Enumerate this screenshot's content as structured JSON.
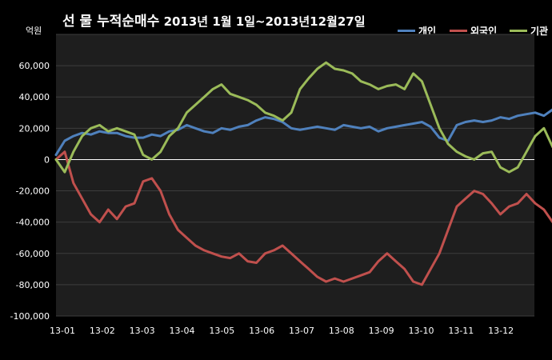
{
  "chart_data": {
    "type": "line",
    "title_main": "선 물 누적순매수",
    "title_range": "2013년 1월 1일~2013년12월27일",
    "unit_label": "억원",
    "categories": [
      "13-01",
      "13-02",
      "13-03",
      "13-04",
      "13-05",
      "13-06",
      "13-07",
      "13-08",
      "13-09",
      "13-10",
      "13-11",
      "13-12"
    ],
    "y_ticks": [
      "60,000",
      "40,000",
      "20,000",
      "0",
      "-20,000",
      "-40,000",
      "-60,000",
      "-80,000",
      "-100,000"
    ],
    "ylim": [
      -100000,
      80000
    ],
    "grid": true,
    "legend_position": "top-right",
    "series": [
      {
        "name": "개인",
        "color": "#4f81bd",
        "x": [
          0,
          0.2,
          0.4,
          0.6,
          0.8,
          1.0,
          1.2,
          1.4,
          1.6,
          1.8,
          2.0,
          2.2,
          2.4,
          2.6,
          2.8,
          3.0,
          3.2,
          3.4,
          3.6,
          3.8,
          4.0,
          4.2,
          4.4,
          4.6,
          4.8,
          5.0,
          5.2,
          5.4,
          5.6,
          5.8,
          6.0,
          6.2,
          6.4,
          6.6,
          6.8,
          7.0,
          7.2,
          7.4,
          7.6,
          7.8,
          8.0,
          8.2,
          8.4,
          8.6,
          8.8,
          9.0,
          9.2,
          9.4,
          9.6,
          9.8,
          10.0,
          10.2,
          10.4,
          10.6,
          10.8,
          11.0,
          11.2,
          11.4,
          11.6,
          11.8
        ],
        "values": [
          3000,
          12000,
          15000,
          17000,
          16000,
          18000,
          17000,
          17000,
          15000,
          14000,
          14000,
          16000,
          15000,
          18000,
          19000,
          22000,
          20000,
          18000,
          17000,
          20000,
          19000,
          21000,
          22000,
          25000,
          27000,
          26000,
          24000,
          20000,
          19000,
          20000,
          21000,
          20000,
          19000,
          22000,
          21000,
          20000,
          21000,
          18000,
          20000,
          21000,
          22000,
          23000,
          24000,
          21000,
          14000,
          12000,
          22000,
          24000,
          25000,
          24000,
          25000,
          27000,
          26000,
          28000,
          29000,
          30000,
          28000,
          32000,
          28000,
          18000
        ]
      },
      {
        "name": "외국인",
        "color": "#c0504d",
        "x": [
          0,
          0.2,
          0.4,
          0.6,
          0.8,
          1.0,
          1.2,
          1.4,
          1.6,
          1.8,
          2.0,
          2.2,
          2.4,
          2.6,
          2.8,
          3.0,
          3.2,
          3.4,
          3.6,
          3.8,
          4.0,
          4.2,
          4.4,
          4.6,
          4.8,
          5.0,
          5.2,
          5.4,
          5.6,
          5.8,
          6.0,
          6.2,
          6.4,
          6.6,
          6.8,
          7.0,
          7.2,
          7.4,
          7.6,
          7.8,
          8.0,
          8.2,
          8.4,
          8.6,
          8.8,
          9.0,
          9.2,
          9.4,
          9.6,
          9.8,
          10.0,
          10.2,
          10.4,
          10.6,
          10.8,
          11.0,
          11.2,
          11.4,
          11.6,
          11.8
        ],
        "values": [
          0,
          5000,
          -15000,
          -25000,
          -35000,
          -40000,
          -32000,
          -38000,
          -30000,
          -28000,
          -14000,
          -12000,
          -20000,
          -35000,
          -45000,
          -50000,
          -55000,
          -58000,
          -60000,
          -62000,
          -63000,
          -60000,
          -65000,
          -66000,
          -60000,
          -58000,
          -55000,
          -60000,
          -65000,
          -70000,
          -75000,
          -78000,
          -76000,
          -78000,
          -76000,
          -74000,
          -72000,
          -65000,
          -60000,
          -65000,
          -70000,
          -78000,
          -80000,
          -70000,
          -60000,
          -45000,
          -30000,
          -25000,
          -20000,
          -22000,
          -28000,
          -35000,
          -30000,
          -28000,
          -22000,
          -28000,
          -32000,
          -40000,
          -45000,
          -20000
        ]
      },
      {
        "name": "기관",
        "color": "#9bbb59",
        "x": [
          0,
          0.2,
          0.4,
          0.6,
          0.8,
          1.0,
          1.2,
          1.4,
          1.6,
          1.8,
          2.0,
          2.2,
          2.4,
          2.6,
          2.8,
          3.0,
          3.2,
          3.4,
          3.6,
          3.8,
          4.0,
          4.2,
          4.4,
          4.6,
          4.8,
          5.0,
          5.2,
          5.4,
          5.6,
          5.8,
          6.0,
          6.2,
          6.4,
          6.6,
          6.8,
          7.0,
          7.2,
          7.4,
          7.6,
          7.8,
          8.0,
          8.2,
          8.4,
          8.6,
          8.8,
          9.0,
          9.2,
          9.4,
          9.6,
          9.8,
          10.0,
          10.2,
          10.4,
          10.6,
          10.8,
          11.0,
          11.2,
          11.4,
          11.6,
          11.8
        ],
        "values": [
          0,
          -8000,
          5000,
          15000,
          20000,
          22000,
          18000,
          20000,
          18000,
          16000,
          3000,
          0,
          5000,
          15000,
          20000,
          30000,
          35000,
          40000,
          45000,
          48000,
          42000,
          40000,
          38000,
          35000,
          30000,
          28000,
          25000,
          30000,
          45000,
          52000,
          58000,
          62000,
          58000,
          57000,
          55000,
          50000,
          48000,
          45000,
          47000,
          48000,
          45000,
          55000,
          50000,
          35000,
          20000,
          10000,
          5000,
          2000,
          0,
          4000,
          5000,
          -5000,
          -8000,
          -5000,
          5000,
          15000,
          20000,
          8000,
          25000,
          2000
        ]
      }
    ]
  }
}
